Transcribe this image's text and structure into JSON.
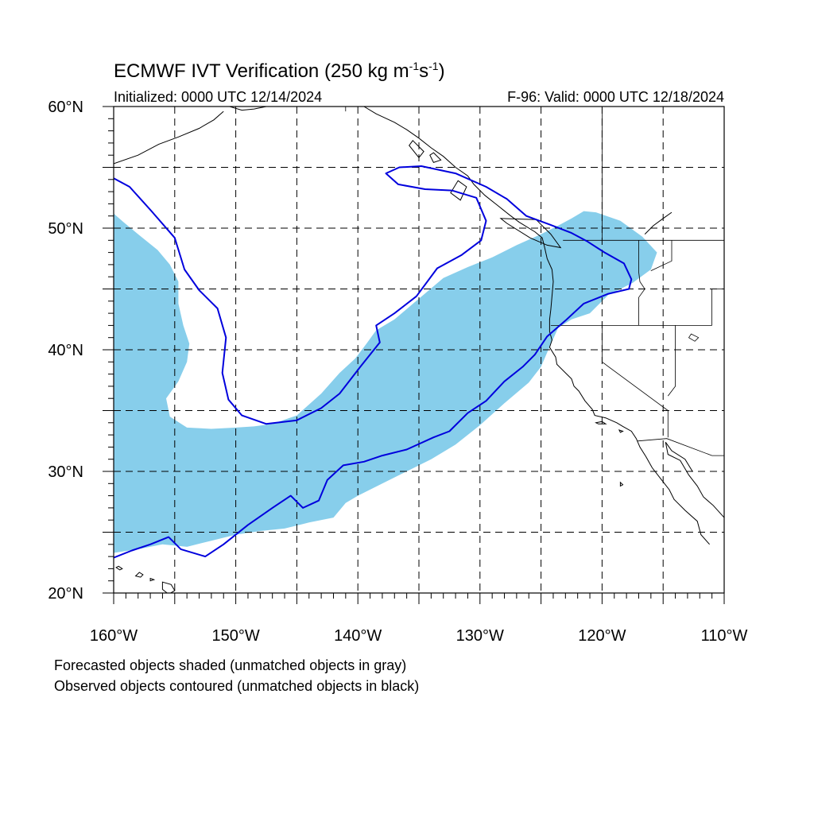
{
  "title": {
    "main": "ECMWF IVT Verification (250 kg m",
    "exp1": "-1",
    "mid": "s",
    "exp2": "-1",
    "close": ")"
  },
  "initialized": "Initialized: 0000 UTC 12/14/2024",
  "valid": "F-96: Valid: 0000 UTC 12/18/2024",
  "legend_notes": [
    "Forecasted objects shaded (unmatched objects in gray)",
    "Observed objects contoured (unmatched objects in black)"
  ],
  "map": {
    "projection": "cylindrical equidistant",
    "lon_range": [
      -160,
      -110
    ],
    "lat_range": [
      20,
      60
    ],
    "grid": "dashed, every 5 degrees",
    "lon_ticks": [
      {
        "value": -160,
        "label": "160°W"
      },
      {
        "value": -150,
        "label": "150°W"
      },
      {
        "value": -140,
        "label": "140°W"
      },
      {
        "value": -130,
        "label": "130°W"
      },
      {
        "value": -120,
        "label": "120°W"
      },
      {
        "value": -110,
        "label": "110°W"
      }
    ],
    "lat_ticks": [
      {
        "value": 20,
        "label": "20°N"
      },
      {
        "value": 30,
        "label": "30°N"
      },
      {
        "value": 40,
        "label": "40°N"
      },
      {
        "value": 50,
        "label": "50°N"
      },
      {
        "value": 60,
        "label": "60°N"
      }
    ],
    "forecast_object": {
      "style": "shaded",
      "color": "#87CEEB",
      "outline": [
        [
          -160,
          23.3
        ],
        [
          -158,
          23.6
        ],
        [
          -156,
          24.0
        ],
        [
          -154,
          23.8
        ],
        [
          -152,
          24.3
        ],
        [
          -150,
          24.8
        ],
        [
          -148,
          25.1
        ],
        [
          -146,
          25.3
        ],
        [
          -144,
          25.8
        ],
        [
          -142,
          26.2
        ],
        [
          -141,
          27.4
        ],
        [
          -140,
          28.0
        ],
        [
          -138,
          29.0
        ],
        [
          -136,
          30.0
        ],
        [
          -134,
          31.0
        ],
        [
          -132,
          32.2
        ],
        [
          -130,
          33.8
        ],
        [
          -128,
          35.6
        ],
        [
          -126,
          37.3
        ],
        [
          -125,
          38.6
        ],
        [
          -124.4,
          40.0
        ],
        [
          -123.6,
          41.8
        ],
        [
          -122.5,
          42.5
        ],
        [
          -121,
          43.0
        ],
        [
          -119.5,
          44.5
        ],
        [
          -117.5,
          45.5
        ],
        [
          -116,
          46.6
        ],
        [
          -115.5,
          48.0
        ],
        [
          -116.7,
          49.3
        ],
        [
          -118.5,
          50.6
        ],
        [
          -120.5,
          51.3
        ],
        [
          -121.5,
          51.4
        ],
        [
          -122.5,
          50.8
        ],
        [
          -123.6,
          50.2
        ],
        [
          -125,
          49.5
        ],
        [
          -127,
          48.6
        ],
        [
          -129,
          47.6
        ],
        [
          -131,
          46.8
        ],
        [
          -133,
          45.9
        ],
        [
          -135,
          44.2
        ],
        [
          -137,
          42.5
        ],
        [
          -138.5,
          41.6
        ],
        [
          -139.3,
          40.5
        ],
        [
          -140.2,
          39.3
        ],
        [
          -141.5,
          38.1
        ],
        [
          -143,
          36.4
        ],
        [
          -145,
          34.6
        ],
        [
          -147,
          33.9
        ],
        [
          -148.5,
          33.7
        ],
        [
          -150,
          33.6
        ],
        [
          -152,
          33.5
        ],
        [
          -154,
          33.6
        ],
        [
          -155.4,
          34.5
        ],
        [
          -155.7,
          36.0
        ],
        [
          -154.7,
          37.4
        ],
        [
          -154,
          39.0
        ],
        [
          -153.8,
          40.5
        ],
        [
          -154.3,
          42.0
        ],
        [
          -154.7,
          43.8
        ],
        [
          -154.7,
          45.6
        ],
        [
          -155.4,
          47.0
        ],
        [
          -156.4,
          48.2
        ],
        [
          -158,
          49.5
        ],
        [
          -159.2,
          50.5
        ],
        [
          -160,
          51.2
        ]
      ]
    },
    "observed_object": {
      "style": "contour",
      "color": "#0000DD",
      "outline": [
        [
          -160,
          22.9
        ],
        [
          -158.5,
          23.5
        ],
        [
          -157,
          24.0
        ],
        [
          -155.5,
          24.6
        ],
        [
          -154.5,
          23.6
        ],
        [
          -152.5,
          23.0
        ],
        [
          -151,
          24.0
        ],
        [
          -149,
          25.6
        ],
        [
          -147,
          27.0
        ],
        [
          -145.5,
          28.0
        ],
        [
          -144.5,
          27.0
        ],
        [
          -143.2,
          27.6
        ],
        [
          -142.5,
          29.3
        ],
        [
          -141.2,
          30.5
        ],
        [
          -139.5,
          30.8
        ],
        [
          -138,
          31.3
        ],
        [
          -136,
          31.8
        ],
        [
          -133.8,
          32.8
        ],
        [
          -132.5,
          33.3
        ],
        [
          -131,
          34.8
        ],
        [
          -129.5,
          35.8
        ],
        [
          -128,
          37.4
        ],
        [
          -126.5,
          38.6
        ],
        [
          -125.5,
          39.6
        ],
        [
          -124.5,
          41.1
        ],
        [
          -123,
          42.4
        ],
        [
          -121.5,
          43.8
        ],
        [
          -119.5,
          44.6
        ],
        [
          -117.8,
          45.0
        ],
        [
          -117.6,
          45.8
        ],
        [
          -118.2,
          47.1
        ],
        [
          -119.8,
          48.0
        ],
        [
          -121.2,
          48.9
        ],
        [
          -122.5,
          49.6
        ],
        [
          -124.3,
          50.3
        ],
        [
          -126.2,
          51.0
        ],
        [
          -127.8,
          52.4
        ],
        [
          -129.5,
          53.4
        ],
        [
          -132,
          54.5
        ],
        [
          -134.8,
          55.1
        ],
        [
          -136.6,
          55.0
        ],
        [
          -137.7,
          54.5
        ],
        [
          -136.7,
          53.6
        ],
        [
          -134.5,
          53.2
        ],
        [
          -132.3,
          53.1
        ],
        [
          -130.3,
          52.5
        ],
        [
          -129.5,
          50.6
        ],
        [
          -129.9,
          49.0
        ],
        [
          -131.5,
          47.8
        ],
        [
          -133.5,
          46.7
        ],
        [
          -135.2,
          44.4
        ],
        [
          -137,
          43.0
        ],
        [
          -138.5,
          42.0
        ],
        [
          -138.2,
          40.6
        ],
        [
          -139.8,
          38.6
        ],
        [
          -141.5,
          36.4
        ],
        [
          -143,
          35.2
        ],
        [
          -145,
          34.2
        ],
        [
          -147.5,
          33.9
        ],
        [
          -149.5,
          34.6
        ],
        [
          -150.6,
          35.9
        ],
        [
          -151.1,
          38.1
        ],
        [
          -150.8,
          41.0
        ],
        [
          -151.5,
          43.4
        ],
        [
          -153,
          44.9
        ],
        [
          -154.2,
          46.6
        ],
        [
          -155,
          49.2
        ],
        [
          -156.9,
          51.4
        ],
        [
          -158.7,
          53.4
        ],
        [
          -160,
          54.1
        ]
      ]
    },
    "coastline": [
      [
        [
          -160,
          55.3
        ],
        [
          -158,
          56.0
        ],
        [
          -156.3,
          56.9
        ],
        [
          -154.7,
          57.5
        ],
        [
          -153,
          58.2
        ],
        [
          -151.8,
          58.9
        ],
        [
          -151,
          59.6
        ]
      ],
      [
        [
          -150.5,
          60.0
        ],
        [
          -149.5,
          59.7
        ],
        [
          -148.5,
          59.8
        ],
        [
          -147.5,
          60.0
        ]
      ],
      [
        [
          -139.5,
          60.0
        ],
        [
          -138.5,
          59.4
        ],
        [
          -137,
          58.7
        ],
        [
          -136,
          58.1
        ],
        [
          -135,
          57.4
        ],
        [
          -134,
          56.6
        ],
        [
          -133,
          55.9
        ],
        [
          -132,
          55.0
        ],
        [
          -131,
          54.3
        ],
        [
          -130.5,
          53.6
        ],
        [
          -129.6,
          52.7
        ],
        [
          -128.6,
          51.9
        ],
        [
          -127.6,
          51.1
        ],
        [
          -126.8,
          50.5
        ],
        [
          -125.5,
          49.7
        ],
        [
          -124.9,
          49.2
        ],
        [
          -124.7,
          48.4
        ],
        [
          -124.5,
          47.5
        ],
        [
          -124.1,
          46.6
        ],
        [
          -124,
          45.6
        ],
        [
          -124.1,
          44.4
        ],
        [
          -124.2,
          43.3
        ],
        [
          -124.3,
          42.5
        ],
        [
          -124.3,
          41.5
        ],
        [
          -124.1,
          40.8
        ],
        [
          -124.3,
          40.2
        ],
        [
          -123.8,
          39.4
        ],
        [
          -123.7,
          38.8
        ],
        [
          -122.9,
          38.0
        ],
        [
          -122.5,
          37.6
        ],
        [
          -122.3,
          37.0
        ],
        [
          -121.9,
          36.6
        ],
        [
          -121.4,
          35.8
        ],
        [
          -120.8,
          35.1
        ],
        [
          -120.6,
          34.6
        ],
        [
          -119.7,
          34.4
        ],
        [
          -118.8,
          34.0
        ],
        [
          -118.3,
          33.7
        ],
        [
          -117.6,
          33.3
        ],
        [
          -117.2,
          32.7
        ],
        [
          -116.9,
          32.0
        ],
        [
          -116.4,
          31.2
        ],
        [
          -115.9,
          30.3
        ],
        [
          -115.2,
          29.4
        ],
        [
          -114.5,
          28.5
        ],
        [
          -114.1,
          27.7
        ],
        [
          -113.2,
          26.8
        ],
        [
          -112.2,
          25.9
        ],
        [
          -111.9,
          24.8
        ],
        [
          -111.2,
          24.0
        ]
      ],
      [
        [
          -114.8,
          32.4
        ],
        [
          -114.6,
          31.4
        ],
        [
          -113.6,
          30.9
        ],
        [
          -112.9,
          29.7
        ],
        [
          -112.2,
          28.8
        ],
        [
          -111.7,
          27.9
        ],
        [
          -110.9,
          27.2
        ],
        [
          -110.0,
          26.2
        ]
      ],
      [
        [
          -114.8,
          32.4
        ],
        [
          -114.3,
          31.7
        ],
        [
          -113.2,
          31.0
        ],
        [
          -112.6,
          30.0
        ]
      ],
      [
        [
          -116.5,
          49.5
        ],
        [
          -115.8,
          50.2
        ],
        [
          -115.0,
          50.8
        ],
        [
          -114.3,
          51.3
        ]
      ]
    ],
    "islands": [
      [
        [
          -156.0,
          20.9
        ],
        [
          -155.3,
          20.7
        ],
        [
          -155.0,
          20.2
        ],
        [
          -155.5,
          19.9
        ],
        [
          -156.0,
          20.3
        ],
        [
          -156.0,
          20.9
        ]
      ],
      [
        [
          -157.9,
          21.7
        ],
        [
          -157.6,
          21.5
        ],
        [
          -157.8,
          21.3
        ],
        [
          -158.2,
          21.4
        ],
        [
          -157.9,
          21.7
        ]
      ],
      [
        [
          -159.6,
          22.2
        ],
        [
          -159.3,
          22.0
        ],
        [
          -159.5,
          21.9
        ],
        [
          -159.8,
          22.1
        ],
        [
          -159.6,
          22.2
        ]
      ],
      [
        [
          -157.0,
          21.2
        ],
        [
          -156.7,
          21.1
        ],
        [
          -157.0,
          21.0
        ],
        [
          -157.0,
          21.2
        ]
      ],
      [
        [
          -131.8,
          53.9
        ],
        [
          -131.1,
          53.4
        ],
        [
          -131.6,
          52.3
        ],
        [
          -132.4,
          52.9
        ],
        [
          -131.8,
          53.9
        ]
      ],
      [
        [
          -125.4,
          50.7
        ],
        [
          -124.2,
          49.5
        ],
        [
          -123.4,
          48.4
        ],
        [
          -124.5,
          48.6
        ],
        [
          -125.9,
          49.2
        ],
        [
          -127.8,
          50.4
        ],
        [
          -128.3,
          50.8
        ],
        [
          -125.4,
          50.7
        ]
      ],
      [
        [
          -135.5,
          57.2
        ],
        [
          -134.6,
          56.3
        ],
        [
          -135.0,
          55.8
        ],
        [
          -135.8,
          56.8
        ],
        [
          -135.5,
          57.2
        ]
      ],
      [
        [
          -133.8,
          56.2
        ],
        [
          -133.2,
          55.6
        ],
        [
          -133.8,
          55.4
        ],
        [
          -134.1,
          56.0
        ],
        [
          -133.8,
          56.2
        ]
      ],
      [
        [
          -120.5,
          34.0
        ],
        [
          -120.0,
          34.1
        ],
        [
          -119.7,
          33.9
        ],
        [
          -120.3,
          33.9
        ],
        [
          -120.5,
          34.0
        ]
      ],
      [
        [
          -118.6,
          33.4
        ],
        [
          -118.3,
          33.3
        ],
        [
          -118.5,
          33.2
        ],
        [
          -118.6,
          33.4
        ]
      ],
      [
        [
          -118.5,
          29.1
        ],
        [
          -118.3,
          28.9
        ],
        [
          -118.5,
          28.8
        ],
        [
          -118.5,
          29.1
        ]
      ]
    ],
    "borders": [
      [
        [
          -123.2,
          49.0
        ],
        [
          -95,
          49.0
        ]
      ],
      [
        [
          -141,
          60.0
        ],
        [
          -141,
          59.6
        ]
      ],
      [
        [
          -117.1,
          32.5
        ],
        [
          -114.7,
          32.7
        ],
        [
          -111,
          31.3
        ],
        [
          -110,
          31.3
        ]
      ],
      [
        [
          -124.2,
          42.0
        ],
        [
          -117.0,
          42.0
        ],
        [
          -111.0,
          42.0
        ]
      ],
      [
        [
          -120.0,
          42.0
        ],
        [
          -120.0,
          39.0
        ],
        [
          -114.6,
          35.0
        ],
        [
          -114.6,
          32.8
        ]
      ],
      [
        [
          -117.0,
          49.0
        ],
        [
          -117.0,
          46.4
        ],
        [
          -116.9,
          45.6
        ],
        [
          -116.5,
          45.0
        ],
        [
          -117.0,
          44.3
        ],
        [
          -117.0,
          42.0
        ]
      ],
      [
        [
          -114.0,
          42.0
        ],
        [
          -114.0,
          37.0
        ],
        [
          -114.6,
          36.2
        ]
      ],
      [
        [
          -111.0,
          42.0
        ],
        [
          -111.0,
          45.0
        ],
        [
          -110.0,
          45.0
        ]
      ],
      [
        [
          -120.0,
          60.0
        ],
        [
          -120.0,
          49.0
        ]
      ],
      [
        [
          -114.3,
          49.0
        ],
        [
          -114.3,
          47.3
        ],
        [
          -116.0,
          46.5
        ]
      ]
    ],
    "lakes": [
      [
        [
          -112.7,
          41.3
        ],
        [
          -112.1,
          41.0
        ],
        [
          -112.4,
          40.7
        ],
        [
          -112.9,
          41.0
        ],
        [
          -112.7,
          41.3
        ]
      ]
    ]
  },
  "colors": {
    "forecast_fill": "#87CEEB",
    "observed_contour": "#0000DD",
    "grid": "#000000"
  }
}
